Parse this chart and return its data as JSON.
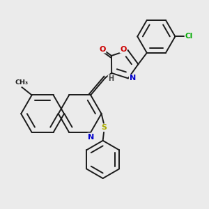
{
  "background_color": "#ebebeb",
  "bond_color": "#1a1a1a",
  "atom_colors": {
    "O": "#cc0000",
    "N": "#0000cc",
    "S": "#aaaa00",
    "Cl": "#00aa00",
    "C": "#1a1a1a",
    "H": "#444444"
  },
  "figsize": [
    3.0,
    3.0
  ],
  "dpi": 100
}
